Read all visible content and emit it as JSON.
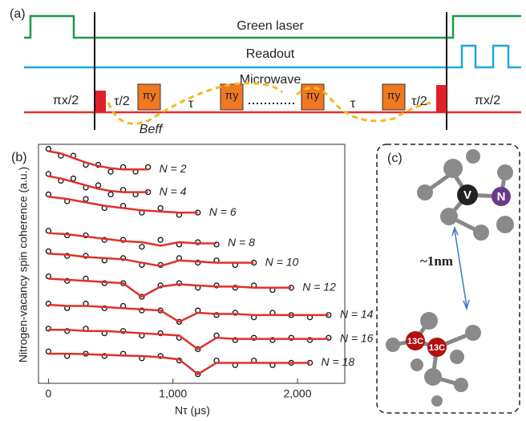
{
  "sequence": {
    "label": "(a)",
    "green": "Green laser",
    "readout": "Readout",
    "microwave": "Microwave",
    "texts": [
      "πx/2",
      "τ/2",
      "πy",
      "τ",
      "πy",
      "πy",
      "τ",
      "πy",
      "τ/2",
      "πx/2"
    ],
    "beff": "Beff"
  },
  "chart_data": {
    "type": "scatter-line",
    "label": "(b)",
    "y_label": "Nitrogen-vacancy spin coherence (a.u.)",
    "x_label": "Nτ (μs)",
    "xlim": [
      -80,
      2380
    ],
    "ylim": [
      -0.5,
      10
    ],
    "xticks": [
      0,
      {
        "value": 1000,
        "label": "1,000"
      },
      {
        "value": 2000,
        "label": "2,000"
      }
    ],
    "series": [
      {
        "name": "N = 2",
        "x": [
          0,
          100,
          200,
          300,
          400,
          500,
          600,
          700,
          800
        ],
        "values": [
          9.8,
          9.5,
          9.5,
          9.1,
          9.1,
          8.8,
          9.0,
          8.8,
          9.0
        ],
        "fit": [
          9.7,
          9.6,
          9.4,
          9.2,
          9.05,
          8.95,
          8.9,
          8.9,
          8.9
        ]
      },
      {
        "name": "N = 4",
        "x": [
          0,
          100,
          200,
          300,
          400,
          500,
          600,
          700,
          800
        ],
        "values": [
          8.7,
          8.4,
          8.5,
          8.1,
          8.2,
          7.8,
          8.0,
          7.8,
          7.9
        ],
        "fit": [
          8.6,
          8.5,
          8.35,
          8.2,
          8.05,
          7.95,
          7.9,
          7.9,
          7.9
        ]
      },
      {
        "name": "N = 6",
        "x": [
          0,
          150,
          300,
          450,
          600,
          750,
          900,
          1050,
          1200
        ],
        "values": [
          7.8,
          7.5,
          7.6,
          7.2,
          7.3,
          7.0,
          7.2,
          6.9,
          7.0
        ],
        "fit": [
          7.7,
          7.6,
          7.45,
          7.3,
          7.2,
          7.1,
          7.05,
          7.0,
          7.0
        ]
      },
      {
        "name": "N = 8",
        "x": [
          0,
          150,
          300,
          450,
          600,
          750,
          900,
          1050,
          1200,
          1350
        ],
        "values": [
          6.2,
          6.0,
          6.0,
          5.8,
          5.8,
          5.5,
          5.8,
          5.6,
          5.7,
          5.6
        ],
        "fit": [
          6.1,
          6.05,
          5.95,
          5.85,
          5.75,
          5.7,
          5.55,
          5.7,
          5.65,
          5.65
        ]
      },
      {
        "name": "N = 10",
        "x": [
          0,
          150,
          300,
          450,
          600,
          750,
          900,
          1050,
          1200,
          1350,
          1500,
          1650
        ],
        "values": [
          5.3,
          5.1,
          5.1,
          4.9,
          5.0,
          4.7,
          4.7,
          5.0,
          4.8,
          4.9,
          4.7,
          4.8
        ],
        "fit": [
          5.2,
          5.15,
          5.05,
          5.0,
          4.95,
          4.8,
          4.65,
          4.9,
          4.85,
          4.8,
          4.8,
          4.8
        ]
      },
      {
        "name": "N = 12",
        "x": [
          0,
          150,
          300,
          450,
          600,
          750,
          900,
          1050,
          1200,
          1350,
          1500,
          1650,
          1800,
          1950
        ],
        "values": [
          4.2,
          4.0,
          4.1,
          3.9,
          3.9,
          3.3,
          3.8,
          3.9,
          3.7,
          3.8,
          3.7,
          3.8,
          3.6,
          3.7
        ],
        "fit": [
          4.1,
          4.05,
          4.0,
          3.95,
          3.9,
          3.3,
          3.75,
          3.85,
          3.8,
          3.75,
          3.75,
          3.7,
          3.7,
          3.7
        ]
      },
      {
        "name": "N = 14",
        "x": [
          0,
          150,
          300,
          450,
          600,
          750,
          900,
          1050,
          1200,
          1350,
          1500,
          1650,
          1800,
          1950,
          2100,
          2250
        ],
        "values": [
          3.0,
          2.8,
          3.0,
          2.8,
          2.9,
          2.7,
          2.7,
          2.2,
          2.7,
          2.5,
          2.6,
          2.4,
          2.6,
          2.5,
          2.4,
          2.5
        ],
        "fit": [
          2.95,
          2.9,
          2.9,
          2.85,
          2.8,
          2.75,
          2.7,
          2.2,
          2.6,
          2.55,
          2.55,
          2.5,
          2.5,
          2.5,
          2.5,
          2.5
        ]
      },
      {
        "name": "N = 16",
        "x": [
          0,
          150,
          300,
          450,
          600,
          750,
          900,
          1050,
          1200,
          1350,
          1500,
          1650,
          1800,
          1950,
          2100,
          2250
        ],
        "values": [
          1.9,
          1.8,
          1.9,
          1.7,
          1.8,
          1.6,
          1.7,
          1.5,
          1.0,
          1.6,
          1.4,
          1.5,
          1.4,
          1.5,
          1.4,
          1.5
        ],
        "fit": [
          1.85,
          1.85,
          1.8,
          1.8,
          1.75,
          1.7,
          1.65,
          1.6,
          1.0,
          1.5,
          1.45,
          1.45,
          1.45,
          1.45,
          1.45,
          1.45
        ]
      },
      {
        "name": "N = 18",
        "x": [
          0,
          150,
          300,
          450,
          600,
          750,
          900,
          1050,
          1200,
          1350,
          1500,
          1650,
          1800,
          1950,
          2100
        ],
        "values": [
          0.9,
          0.7,
          0.8,
          0.7,
          0.8,
          0.6,
          0.7,
          0.5,
          -0.1,
          0.5,
          0.3,
          0.5,
          0.3,
          0.4,
          0.4
        ],
        "fit": [
          0.8,
          0.8,
          0.78,
          0.75,
          0.72,
          0.7,
          0.65,
          0.55,
          -0.1,
          0.4,
          0.4,
          0.4,
          0.4,
          0.4,
          0.4
        ]
      }
    ]
  },
  "molecule": {
    "label": "(c)",
    "distance": "~1nm",
    "v": "V",
    "n": "N",
    "c1": "13C",
    "c2": "13C"
  }
}
